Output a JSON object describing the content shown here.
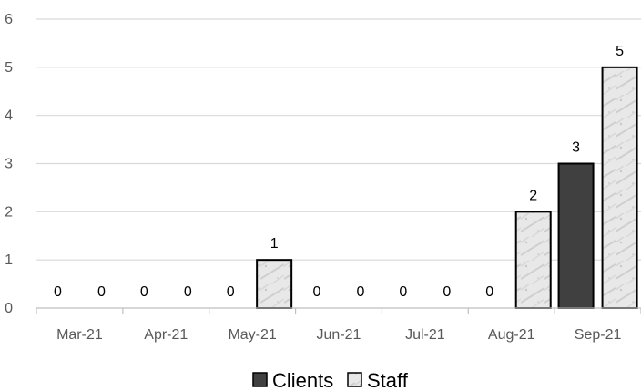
{
  "chart_data": {
    "type": "bar",
    "title": "",
    "xlabel": "",
    "ylabel": "",
    "ylim": [
      0,
      6
    ],
    "yticks": [
      0,
      1,
      2,
      3,
      4,
      5,
      6
    ],
    "grid": true,
    "legend_position": "bottom",
    "categories": [
      "Mar-21",
      "Apr-21",
      "May-21",
      "Jun-21",
      "Jul-21",
      "Aug-21",
      "Sep-21"
    ],
    "series": [
      {
        "name": "Clients",
        "color": "#404040",
        "values": [
          0,
          0,
          0,
          0,
          0,
          0,
          3
        ]
      },
      {
        "name": "Staff",
        "color": "#e4e4e4",
        "pattern": "marble",
        "values": [
          0,
          0,
          1,
          0,
          0,
          2,
          5
        ]
      }
    ]
  }
}
